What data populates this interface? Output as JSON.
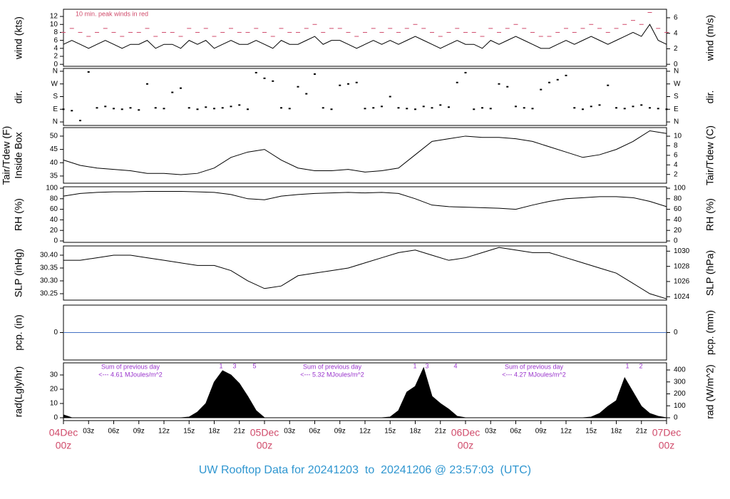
{
  "footer": "UW Rooftop Data for 20241203  to  20241206 @ 23:57:03  (UTC)",
  "chart_data": [
    {
      "type": "line",
      "ylabel": [
        "wind (kts)"
      ],
      "y2label": [
        "wind (m/s)"
      ],
      "xlim": [
        0,
        72
      ],
      "ylim": [
        -0.5,
        13.8
      ],
      "yticks": [
        0,
        2,
        4,
        6,
        8,
        10,
        12
      ],
      "y2lim": [
        -0.26,
        7.1
      ],
      "y2ticks": [
        0,
        2,
        4,
        6
      ],
      "annotations": [
        "10 min. peak winds in red"
      ],
      "x": [
        0,
        1,
        2,
        3,
        4,
        5,
        6,
        7,
        8,
        9,
        10,
        11,
        12,
        13,
        14,
        15,
        16,
        17,
        18,
        19,
        20,
        21,
        22,
        23,
        24,
        25,
        26,
        27,
        28,
        29,
        30,
        31,
        32,
        33,
        34,
        35,
        36,
        37,
        38,
        39,
        40,
        41,
        42,
        43,
        44,
        45,
        46,
        47,
        48,
        49,
        50,
        51,
        52,
        53,
        54,
        55,
        56,
        57,
        58,
        59,
        60,
        61,
        62,
        63,
        64,
        65,
        66,
        67,
        68,
        69,
        70,
        71,
        72
      ],
      "series": [
        {
          "color": "#000000",
          "style": "solid",
          "values": [
            5,
            6,
            5,
            4,
            5,
            6,
            5,
            4,
            5,
            5,
            6,
            4,
            5,
            5,
            4,
            6,
            5,
            6,
            4,
            5,
            6,
            5,
            5,
            6,
            5,
            4,
            6,
            5,
            5,
            6,
            7,
            5,
            6,
            6,
            5,
            4,
            5,
            6,
            5,
            6,
            5,
            6,
            7,
            6,
            5,
            4,
            5,
            6,
            5,
            5,
            4,
            6,
            5,
            6,
            7,
            6,
            5,
            4,
            4,
            5,
            6,
            5,
            6,
            7,
            6,
            5,
            6,
            7,
            8,
            7,
            10,
            6,
            5
          ]
        },
        {
          "color": "#d04a6a",
          "style": "dash",
          "values": [
            8,
            9,
            8,
            7,
            8,
            9,
            8,
            7,
            8,
            8,
            9,
            7,
            8,
            8,
            7,
            9,
            8,
            9,
            7,
            8,
            9,
            8,
            8,
            9,
            8,
            7,
            9,
            8,
            8,
            9,
            10,
            8,
            9,
            9,
            8,
            7,
            8,
            9,
            8,
            9,
            8,
            9,
            10,
            9,
            8,
            7,
            8,
            9,
            8,
            8,
            7,
            9,
            8,
            9,
            10,
            9,
            8,
            7,
            7,
            8,
            9,
            8,
            9,
            10,
            9,
            8,
            9,
            10,
            11,
            10,
            13,
            9,
            8
          ]
        }
      ]
    },
    {
      "type": "scatter",
      "ylabel": [
        "dir."
      ],
      "y2label": [
        "dir."
      ],
      "xlim": [
        0,
        72
      ],
      "ylim": [
        -25,
        380
      ],
      "yticks": [
        {
          "value": 0,
          "label": "N"
        },
        {
          "value": 90,
          "label": "E"
        },
        {
          "value": 180,
          "label": "S"
        },
        {
          "value": 270,
          "label": "W"
        },
        {
          "value": 360,
          "label": "N"
        }
      ],
      "y2lim": [
        -25,
        380
      ],
      "y2ticks": [
        {
          "value": 0,
          "label": "N"
        },
        {
          "value": 90,
          "label": "E"
        },
        {
          "value": 180,
          "label": "S"
        },
        {
          "value": 270,
          "label": "W"
        },
        {
          "value": 360,
          "label": "N"
        }
      ],
      "color": "#000000",
      "x": [
        0,
        1,
        2,
        3,
        4,
        5,
        6,
        7,
        8,
        9,
        10,
        11,
        12,
        13,
        14,
        15,
        16,
        17,
        18,
        19,
        20,
        21,
        22,
        23,
        24,
        25,
        26,
        27,
        28,
        29,
        30,
        31,
        32,
        33,
        34,
        35,
        36,
        37,
        38,
        39,
        40,
        41,
        42,
        43,
        44,
        45,
        46,
        47,
        48,
        49,
        50,
        51,
        52,
        53,
        54,
        55,
        56,
        57,
        58,
        59,
        60,
        61,
        62,
        63,
        64,
        65,
        66,
        67,
        68,
        69,
        70,
        71,
        72
      ],
      "values": [
        90,
        80,
        10,
        355,
        100,
        110,
        95,
        90,
        100,
        85,
        270,
        100,
        95,
        210,
        240,
        100,
        90,
        105,
        95,
        100,
        110,
        120,
        90,
        350,
        310,
        290,
        100,
        95,
        250,
        200,
        340,
        100,
        90,
        260,
        270,
        280,
        95,
        100,
        110,
        180,
        100,
        95,
        90,
        110,
        100,
        120,
        105,
        280,
        350,
        90,
        100,
        95,
        270,
        250,
        110,
        100,
        95,
        230,
        280,
        300,
        330,
        100,
        90,
        110,
        120,
        260,
        100,
        95,
        110,
        120,
        100,
        95,
        90
      ]
    },
    {
      "type": "line",
      "ylabel": [
        "Tair/Tdew (F)",
        "Inside Box"
      ],
      "y2label": [
        "Tair/Tdew (C)"
      ],
      "xlim": [
        0,
        72
      ],
      "ylim": [
        32.3,
        53.2
      ],
      "yticks": [
        35,
        40,
        45,
        50
      ],
      "y2lim": [
        0.17,
        11.8
      ],
      "y2ticks": [
        2,
        4,
        6,
        8,
        10
      ],
      "color": "#000000",
      "x": [
        0,
        2,
        4,
        6,
        8,
        10,
        12,
        14,
        16,
        18,
        20,
        22,
        24,
        26,
        28,
        30,
        32,
        34,
        36,
        38,
        40,
        42,
        44,
        46,
        48,
        50,
        52,
        54,
        56,
        58,
        60,
        62,
        64,
        66,
        68,
        70,
        72
      ],
      "values": [
        41,
        39,
        38,
        37.5,
        37,
        36,
        36,
        35.5,
        36,
        38,
        42,
        44,
        45,
        41,
        38,
        37,
        37,
        37.5,
        36.5,
        37,
        38,
        43,
        48,
        49,
        50,
        49.5,
        49.5,
        49,
        48,
        46,
        44,
        42,
        43,
        45,
        48,
        52,
        51
      ]
    },
    {
      "type": "line",
      "ylabel": [
        "RH (%)"
      ],
      "y2label": [
        "RH (%)"
      ],
      "xlim": [
        0,
        72
      ],
      "ylim": [
        -2.7,
        102.7
      ],
      "yticks": [
        0,
        20,
        40,
        60,
        80,
        100
      ],
      "y2lim": [
        -2.7,
        102.7
      ],
      "y2ticks": [
        0,
        20,
        40,
        60,
        80,
        100
      ],
      "color": "#000000",
      "x": [
        0,
        2,
        4,
        6,
        8,
        10,
        12,
        14,
        16,
        18,
        20,
        22,
        24,
        26,
        28,
        30,
        32,
        34,
        36,
        38,
        40,
        42,
        44,
        46,
        48,
        50,
        52,
        54,
        56,
        58,
        60,
        62,
        64,
        66,
        68,
        70,
        72
      ],
      "values": [
        85,
        90,
        92,
        93,
        93,
        94,
        94,
        94,
        93,
        92,
        88,
        80,
        78,
        85,
        88,
        90,
        91,
        92,
        91,
        92,
        90,
        80,
        68,
        65,
        64,
        63,
        62,
        60,
        68,
        75,
        80,
        82,
        84,
        84,
        82,
        75,
        65
      ]
    },
    {
      "type": "line",
      "ylabel": [
        "SLP (inHg)"
      ],
      "y2label": [
        "SLP (hPa)"
      ],
      "xlim": [
        0,
        72
      ],
      "ylim": [
        30.225,
        30.436
      ],
      "yticks": [
        30.25,
        {
          "value": 30.3,
          "label": "30.30"
        },
        30.35,
        {
          "value": 30.4,
          "label": "30.40"
        }
      ],
      "y2lim": [
        1023.55,
        1030.69
      ],
      "y2ticks": [
        1024,
        1026,
        1028,
        1030
      ],
      "color": "#000000",
      "x": [
        0,
        2,
        4,
        6,
        8,
        10,
        12,
        14,
        16,
        18,
        20,
        22,
        24,
        26,
        28,
        30,
        32,
        34,
        36,
        38,
        40,
        42,
        44,
        46,
        48,
        50,
        52,
        54,
        56,
        58,
        60,
        62,
        64,
        66,
        68,
        70,
        72
      ],
      "values": [
        30.38,
        30.38,
        30.39,
        30.4,
        30.4,
        30.39,
        30.38,
        30.37,
        30.36,
        30.36,
        30.34,
        30.3,
        30.27,
        30.28,
        30.32,
        30.33,
        30.34,
        30.35,
        30.37,
        30.39,
        30.41,
        30.42,
        30.4,
        30.38,
        30.39,
        30.41,
        30.43,
        30.42,
        30.41,
        30.41,
        30.39,
        30.37,
        30.35,
        30.33,
        30.29,
        30.25,
        30.23
      ]
    },
    {
      "type": "line",
      "ylabel": [
        "pcp. (in)"
      ],
      "y2label": [
        "pcp. (mm)"
      ],
      "xlim": [
        0,
        72
      ],
      "ylim": [
        -1,
        1
      ],
      "yticks": [
        0
      ],
      "y2lim": [
        -25.4,
        25.4
      ],
      "y2ticks": [
        0
      ],
      "color": "#4472c4",
      "x": [
        0,
        72
      ],
      "values": [
        0,
        0
      ]
    },
    {
      "type": "area",
      "ylabel": [
        "rad(Lgly/hr)"
      ],
      "y2label": [
        "rad (W/m^2)"
      ],
      "xlim": [
        0,
        72
      ],
      "ylim": [
        -2,
        38.5
      ],
      "yticks": [
        0,
        10,
        20,
        30
      ],
      "y2lim": [
        -23.9,
        459.7
      ],
      "y2ticks": [
        0,
        100,
        200,
        300,
        400
      ],
      "color": "#000000",
      "annotations": [
        "Sum of previous day",
        "<--- 4.61 MJoules/m^2",
        "Sum of previous day",
        "<--- 5.32 MJoules/m^2",
        "Sum of previous day",
        "<--- 4.27 MJoules/m^2",
        "1",
        "3",
        "5",
        "1",
        "3",
        "4",
        "1",
        "2"
      ],
      "x": [
        0,
        1,
        2,
        3,
        4,
        5,
        6,
        7,
        8,
        9,
        10,
        11,
        12,
        13,
        14,
        15,
        16,
        17,
        18,
        19,
        20,
        21,
        22,
        23,
        24,
        25,
        26,
        27,
        28,
        29,
        30,
        31,
        32,
        33,
        34,
        35,
        36,
        37,
        38,
        39,
        40,
        41,
        42,
        43,
        44,
        45,
        46,
        47,
        48,
        49,
        50,
        51,
        52,
        53,
        54,
        55,
        56,
        57,
        58,
        59,
        60,
        61,
        62,
        63,
        64,
        65,
        66,
        67,
        68,
        69,
        70,
        71,
        72
      ],
      "values": [
        2,
        0,
        0,
        0,
        0,
        0,
        0,
        0,
        0,
        0,
        0,
        0,
        0,
        0,
        0,
        0.5,
        4,
        10,
        25,
        33,
        30,
        24,
        15,
        5,
        0,
        0,
        0,
        0,
        0,
        0,
        0,
        0,
        0,
        0,
        0,
        0,
        0,
        0,
        0,
        0.5,
        5,
        18,
        22,
        35,
        15,
        10,
        6,
        1,
        0,
        0,
        0,
        0,
        0,
        0,
        0,
        0,
        0,
        0,
        0,
        0,
        0,
        0,
        0,
        0.5,
        3,
        8,
        12,
        28,
        18,
        8,
        3,
        1,
        0
      ],
      "xticks": [
        {
          "value": 3,
          "label": "03z"
        },
        {
          "value": 6,
          "label": "06z"
        },
        {
          "value": 9,
          "label": "09z"
        },
        {
          "value": 12,
          "label": "12z"
        },
        {
          "value": 15,
          "label": "15z"
        },
        {
          "value": 18,
          "label": "18z"
        },
        {
          "value": 21,
          "label": "21z"
        },
        {
          "value": 27,
          "label": "03z"
        },
        {
          "value": 30,
          "label": "06z"
        },
        {
          "value": 33,
          "label": "09z"
        },
        {
          "value": 36,
          "label": "12z"
        },
        {
          "value": 39,
          "label": "15z"
        },
        {
          "value": 42,
          "label": "18z"
        },
        {
          "value": 45,
          "label": "21z"
        },
        {
          "value": 51,
          "label": "03z"
        },
        {
          "value": 54,
          "label": "06z"
        },
        {
          "value": 57,
          "label": "09z"
        },
        {
          "value": 60,
          "label": "12z"
        },
        {
          "value": 63,
          "label": "15z"
        },
        {
          "value": 66,
          "label": "18z"
        },
        {
          "value": 69,
          "label": "21z"
        }
      ],
      "day_ticks": [
        {
          "value": 0,
          "label": "04Dec",
          "hour": "00z"
        },
        {
          "value": 24,
          "label": "05Dec",
          "hour": "00z"
        },
        {
          "value": 48,
          "label": "06Dec",
          "hour": "00z"
        },
        {
          "value": 72,
          "label": "07Dec",
          "hour": "00z"
        }
      ]
    }
  ]
}
